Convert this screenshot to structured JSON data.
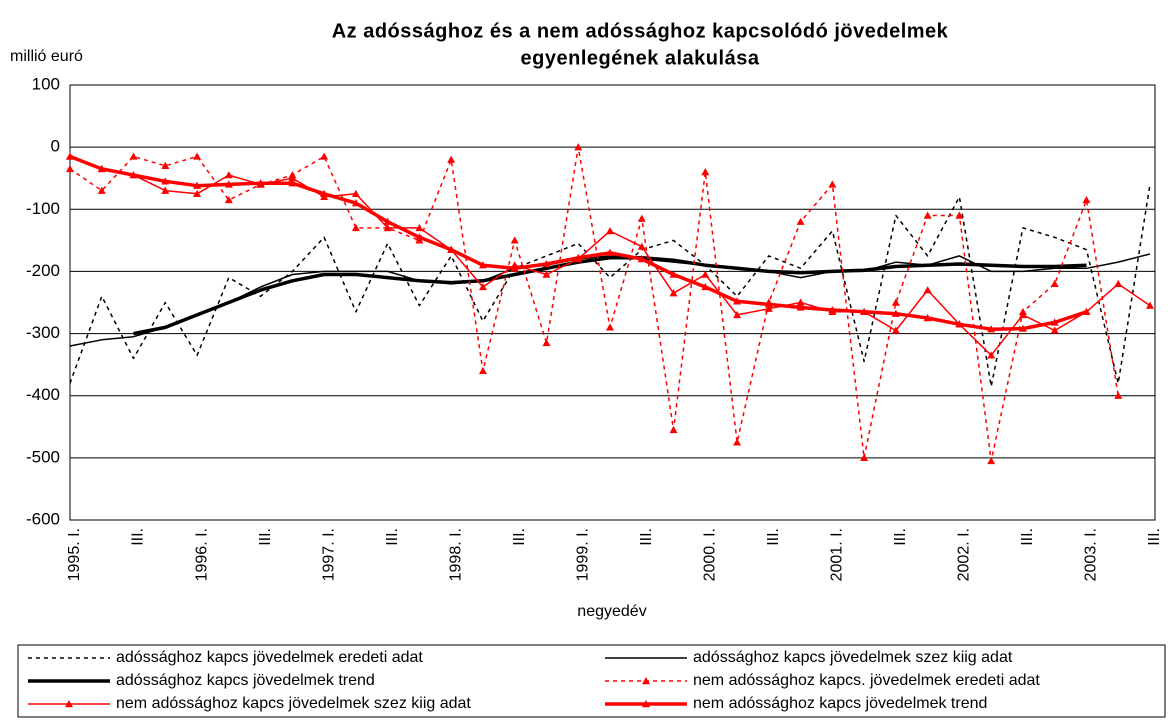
{
  "chart_data": {
    "type": "line",
    "title": [
      "Az adóssághoz  és a nem adóssághoz kapcsolódó jövedelmek",
      "egyenlegének alakulása"
    ],
    "y_label": "millió euró",
    "x_label": "negyedév",
    "categories": [
      "1995. I.",
      null,
      "III.",
      null,
      "1996. I.",
      null,
      "III.",
      null,
      "1997. I.",
      null,
      "III.",
      null,
      "1998. I.",
      null,
      "III.",
      null,
      "1999. I.",
      null,
      "III.",
      null,
      "2000. I.",
      null,
      "III.",
      null,
      "2001. I.",
      null,
      "III.",
      null,
      "2002. I.",
      null,
      "III.",
      null,
      "2003. I.",
      null,
      "III."
    ],
    "ylim": [
      -600,
      100
    ],
    "yticks": [
      -600,
      -500,
      -400,
      -300,
      -200,
      -100,
      0,
      100
    ],
    "grid": true,
    "legend": "bottom",
    "series": [
      {
        "name": "adóssághoz kapcs jövedelmek eredeti adat",
        "color": "#000000",
        "style": "dashed",
        "width": 1.5,
        "marker": "none",
        "values": [
          -380,
          -240,
          -340,
          -250,
          -335,
          -210,
          -240,
          -200,
          -145,
          -265,
          -155,
          -255,
          -175,
          -280,
          -195,
          -175,
          -155,
          -210,
          -165,
          -150,
          -190,
          -240,
          -175,
          -195,
          -135,
          -345,
          -110,
          -175,
          -80,
          -385,
          -130,
          -145,
          -165,
          -380,
          -60
        ]
      },
      {
        "name": "adóssághoz kapcs jövedelmek szez kiig adat",
        "color": "#000000",
        "style": "solid",
        "width": 1.5,
        "marker": "none",
        "values": [
          -320,
          -310,
          -305,
          -290,
          -270,
          -250,
          -225,
          -205,
          -200,
          -200,
          -200,
          -215,
          -220,
          -215,
          -195,
          -190,
          -180,
          -175,
          -180,
          -185,
          -190,
          -195,
          -200,
          -210,
          -200,
          -200,
          -185,
          -190,
          -175,
          -200,
          -200,
          -195,
          -195,
          -185,
          -172
        ]
      },
      {
        "name": "adóssághoz kapcs jövedelmek trend",
        "color": "#000000",
        "style": "solid",
        "width": 3.5,
        "marker": "none",
        "values": [
          null,
          null,
          -300,
          -290,
          -270,
          -250,
          -230,
          -215,
          -205,
          -205,
          -210,
          -215,
          -218,
          -215,
          -205,
          -195,
          -185,
          -178,
          -178,
          -182,
          -190,
          -195,
          -200,
          -202,
          -200,
          -198,
          -192,
          -190,
          -188,
          -190,
          -192,
          -192,
          -190,
          null,
          null
        ]
      },
      {
        "name": "nem adóssághoz kapcs. jövedelmek eredeti adat",
        "color": "#ff0000",
        "style": "dashed",
        "width": 1.5,
        "marker": "triangle",
        "values": [
          -35,
          -70,
          -15,
          -30,
          -15,
          -85,
          -60,
          -45,
          -15,
          -130,
          -130,
          -150,
          -20,
          -360,
          -150,
          -315,
          0,
          -290,
          -115,
          -455,
          -40,
          -475,
          -250,
          -120,
          -60,
          -500,
          -250,
          -110,
          -110,
          -505,
          -265,
          -220,
          -85,
          -400,
          null
        ]
      },
      {
        "name": "nem adóssághoz kapcs jövedelmek szez kiig adat",
        "color": "#ff0000",
        "style": "solid",
        "width": 1.5,
        "marker": "triangle",
        "values": [
          -15,
          -35,
          -45,
          -70,
          -75,
          -45,
          -60,
          -50,
          -80,
          -75,
          -130,
          -130,
          -165,
          -225,
          -190,
          -205,
          -180,
          -135,
          -160,
          -235,
          -205,
          -270,
          -260,
          -250,
          -265,
          -265,
          -295,
          -230,
          -285,
          -335,
          -270,
          -295,
          -265,
          -220,
          -255
        ]
      },
      {
        "name": "nem adóssághoz kapcs jövedelmek trend",
        "color": "#ff0000",
        "style": "solid",
        "width": 3.5,
        "marker": "triangle",
        "values": [
          -15,
          -35,
          -45,
          -55,
          -62,
          -60,
          -58,
          -58,
          -75,
          -90,
          -120,
          -145,
          -165,
          -190,
          -195,
          -188,
          -178,
          -170,
          -180,
          -205,
          -225,
          -248,
          -253,
          -258,
          -262,
          -265,
          -268,
          -275,
          -285,
          -293,
          -292,
          -282,
          -265,
          null,
          null
        ]
      }
    ]
  }
}
